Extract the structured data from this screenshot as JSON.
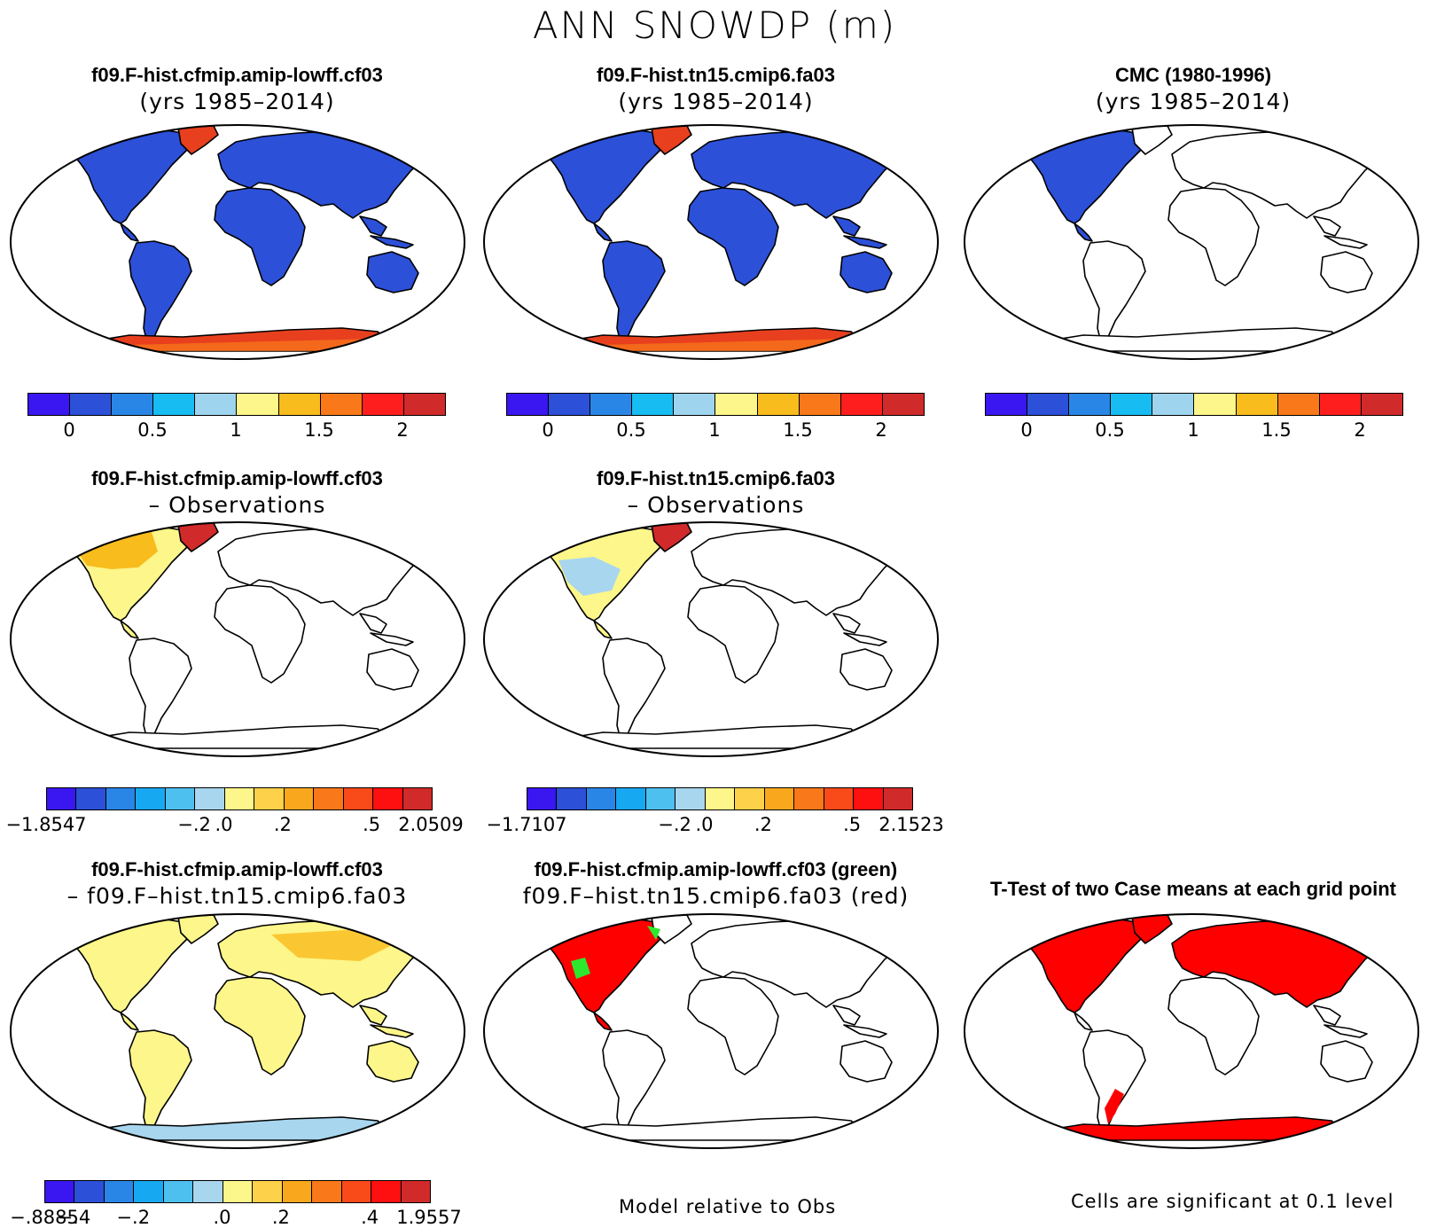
{
  "title": "ANN SNOWDP (m)",
  "panels": {
    "p1": {
      "title": "f09.F-hist.cfmip.amip-lowff.cf03",
      "subtitle": "(yrs 1985–2014)"
    },
    "p2": {
      "title": "f09.F-hist.tn15.cmip6.fa03",
      "subtitle": "(yrs 1985–2014)"
    },
    "p3": {
      "title": "CMC (1980-1996)",
      "subtitle": "(yrs 1985–2014)"
    },
    "p4": {
      "title": "f09.F-hist.cfmip.amip-lowff.cf03",
      "subtitle": "– Observations"
    },
    "p5": {
      "title": "f09.F-hist.tn15.cmip6.fa03",
      "subtitle": "– Observations"
    },
    "p7": {
      "title": "f09.F-hist.cfmip.amip-lowff.cf03",
      "subtitle": "– f09.F–hist.tn15.cmip6.fa03"
    },
    "p8": {
      "title": "f09.F-hist.cfmip.amip-lowff.cf03 (green)",
      "subtitle": "f09.F–hist.tn15.cmip6.fa03 (red)"
    },
    "p9": {
      "title": "T-Test of two Case means at each grid point"
    }
  },
  "colorbars": {
    "abs": {
      "colors": [
        "#3a16f0",
        "#2c50d8",
        "#2a86e6",
        "#17bdf2",
        "#9fd4ee",
        "#fdf68a",
        "#f9bc1d",
        "#f9791a",
        "#ff1e1e",
        "#d02a2a"
      ],
      "ticks": [
        "0",
        "0.5",
        "1",
        "1.5",
        "2"
      ]
    },
    "diff": {
      "colors": [
        "#3a16f0",
        "#2c50d8",
        "#2a86e6",
        "#17a8f2",
        "#4ec0f0",
        "#a8d6ee",
        "#fdf68a",
        "#fdd14a",
        "#f9a81d",
        "#f9791a",
        "#f94a1a",
        "#ff1010",
        "#d02a2a"
      ],
      "ticks1": [
        "−1.8547",
        "−.2",
        ".0",
        ".2",
        ".5",
        "2.0509"
      ],
      "ticks2": [
        "−1.7107",
        "−.2",
        ".0",
        ".2",
        ".5",
        "2.1523"
      ],
      "ticks3": [
        "−.8885",
        "−.4",
        "−.2",
        ".0",
        ".2",
        ".4",
        "1.9557"
      ]
    }
  },
  "notes": {
    "model_rel": "Model relative to Obs",
    "sig": "Cells are significant at 0.1 level"
  },
  "fills": {
    "land_blue": "#2c50d8",
    "antarctic": "#e8401e",
    "green": "#2ee82e",
    "red": "#ff0000",
    "yellow": "#fdf68a",
    "lightblue": "#a8d6ee",
    "orange": "#f9bc1d"
  }
}
